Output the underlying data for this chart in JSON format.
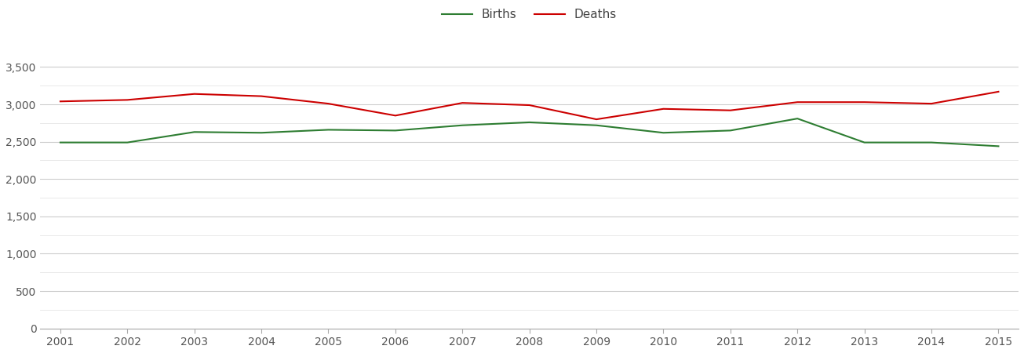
{
  "years": [
    2001,
    2002,
    2003,
    2004,
    2005,
    2006,
    2007,
    2008,
    2009,
    2010,
    2011,
    2012,
    2013,
    2014,
    2015
  ],
  "births": [
    2490,
    2490,
    2630,
    2620,
    2660,
    2650,
    2720,
    2760,
    2720,
    2620,
    2650,
    2810,
    2490,
    2490,
    2440
  ],
  "deaths": [
    3040,
    3060,
    3140,
    3110,
    3010,
    2850,
    3020,
    2990,
    2800,
    2940,
    2920,
    3030,
    3030,
    3010,
    3170
  ],
  "births_color": "#2e7d32",
  "deaths_color": "#cc0000",
  "births_label": "Births",
  "deaths_label": "Deaths",
  "ylim": [
    0,
    3750
  ],
  "yticks_major": [
    0,
    500,
    1000,
    1500,
    2000,
    2500,
    3000,
    3500
  ],
  "yticks_minor": [
    250,
    750,
    1250,
    1750,
    2250,
    2750,
    3250
  ],
  "background_color": "#ffffff",
  "grid_color_major": "#cccccc",
  "grid_color_minor": "#e5e5e5",
  "line_width": 1.5,
  "legend_fontsize": 11,
  "tick_fontsize": 10,
  "figure_width": 13.05,
  "figure_height": 4.5
}
